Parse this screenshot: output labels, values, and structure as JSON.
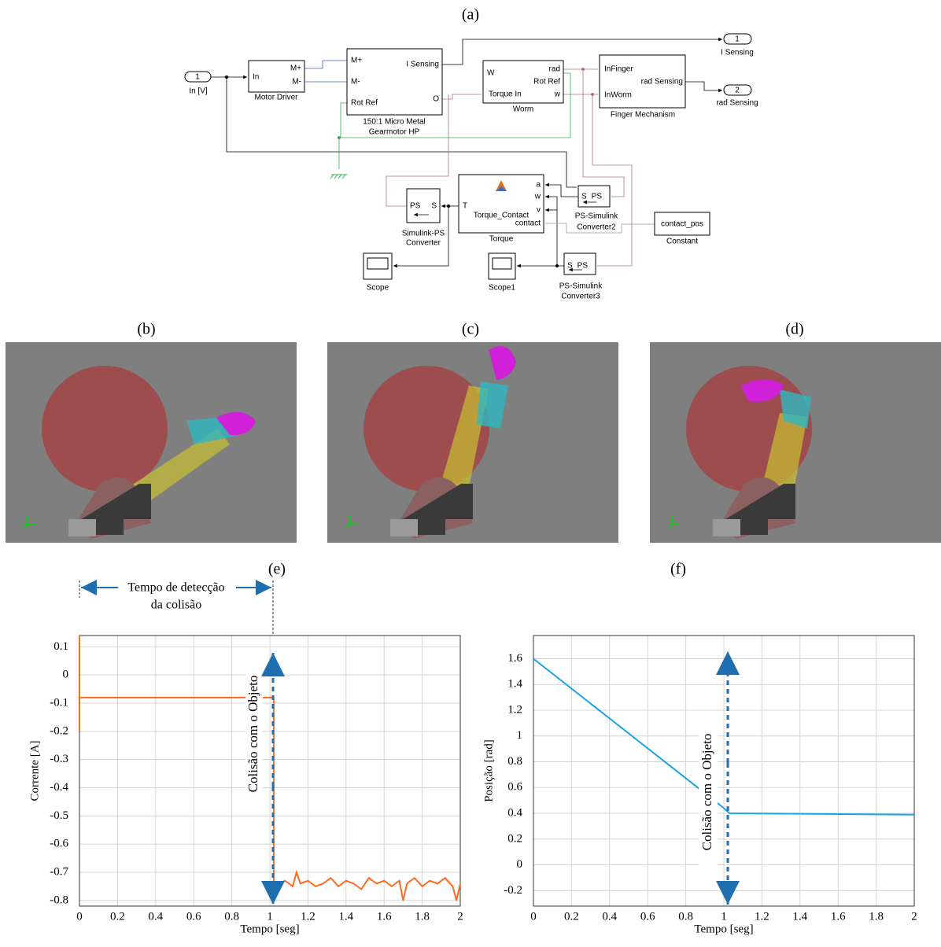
{
  "panel_labels": [
    "(a)",
    "(b)",
    "(c)",
    "(d)",
    "(e)",
    "(f)"
  ],
  "diagram": {
    "inport": {
      "number": "1",
      "label": "In [V]"
    },
    "motor_driver": {
      "ports": [
        "In",
        "M+",
        "M-"
      ],
      "label": "Motor Driver"
    },
    "gearmotor": {
      "ports": [
        "M+",
        "M-",
        "Rot Ref",
        "I Sensing",
        "O"
      ],
      "label": [
        "150:1 Micro Metal",
        "Gearmotor HP"
      ]
    },
    "worm": {
      "ports": [
        "W",
        "Torque In",
        "rad",
        "Rot Ref",
        "w"
      ],
      "label": "Worm"
    },
    "finger": {
      "ports": [
        "InFinger",
        "InWorm",
        "rad Sensing"
      ],
      "label": "Finger Mechanism"
    },
    "outport_1": {
      "number": "1",
      "label": "I Sensing"
    },
    "outport_2": {
      "number": "2",
      "label": "rad Sensing"
    },
    "torque": {
      "ports": [
        "T",
        "a",
        "w",
        "v",
        "contact"
      ],
      "name": "Torque_Contact",
      "label": "Torque"
    },
    "simulink_ps": {
      "ports": [
        "PS",
        "S"
      ],
      "label": [
        "Simulink-PS",
        "Converter"
      ]
    },
    "ps_simulink_2": {
      "ports": [
        "S",
        "PS"
      ],
      "label": [
        "PS-Simulink",
        "Converter2"
      ]
    },
    "ps_simulink_3": {
      "ports": [
        "S",
        "PS"
      ],
      "label": [
        "PS-Simulink",
        "Converter3"
      ]
    },
    "constant": {
      "value": "contact_pos",
      "label": "Constant"
    },
    "scope": {
      "label": "Scope"
    },
    "scope1": {
      "label": "Scope1"
    }
  },
  "chart_data": [
    {
      "type": "line",
      "xlabel": "Tempo [seg]",
      "ylabel": "Corrente [A]",
      "color": "#ff6a1f",
      "grid": true,
      "annotations": [
        "Tempo de detecção",
        "da colisão",
        "Colisão com o Objeto"
      ],
      "xlim": [
        0,
        2
      ],
      "xticks": [
        0,
        0.2,
        0.4,
        0.6,
        0.8,
        1,
        1.2,
        1.4,
        1.6,
        1.8,
        2
      ],
      "ylim": [
        -0.82,
        0.14
      ],
      "yticks": [
        0.1,
        0,
        -0.1,
        -0.2,
        -0.3,
        -0.4,
        -0.5,
        -0.6,
        -0.7,
        -0.8
      ],
      "x": [
        0,
        0,
        0,
        1.02,
        1.02,
        1.04,
        1.08,
        1.12,
        1.14,
        1.16,
        1.2,
        1.24,
        1.28,
        1.32,
        1.36,
        1.4,
        1.44,
        1.48,
        1.52,
        1.56,
        1.6,
        1.64,
        1.68,
        1.7,
        1.72,
        1.76,
        1.8,
        1.84,
        1.88,
        1.92,
        1.96,
        1.98,
        2
      ],
      "values": [
        0.14,
        -0.2,
        -0.08,
        -0.08,
        -0.74,
        -0.74,
        -0.73,
        -0.75,
        -0.7,
        -0.74,
        -0.73,
        -0.75,
        -0.74,
        -0.72,
        -0.75,
        -0.73,
        -0.74,
        -0.76,
        -0.72,
        -0.74,
        -0.73,
        -0.75,
        -0.73,
        -0.8,
        -0.74,
        -0.72,
        -0.75,
        -0.73,
        -0.74,
        -0.72,
        -0.75,
        -0.8,
        -0.74
      ]
    },
    {
      "type": "line",
      "xlabel": "Tempo [seg]",
      "ylabel": "Posição [rad]",
      "color": "#1aa3e8",
      "grid": true,
      "annotations": [
        "Colisão com o Objeto"
      ],
      "xlim": [
        0,
        2
      ],
      "xticks": [
        0,
        0.2,
        0.4,
        0.6,
        0.8,
        1,
        1.2,
        1.4,
        1.6,
        1.8,
        2
      ],
      "ylim": [
        -0.32,
        1.78
      ],
      "yticks": [
        1.6,
        1.4,
        1.2,
        1,
        0.8,
        0.6,
        0.4,
        0.2,
        0,
        -0.2
      ],
      "x": [
        0,
        0.88,
        1.0,
        1.03,
        2
      ],
      "values": [
        1.6,
        0.58,
        0.44,
        0.4,
        0.39
      ]
    }
  ]
}
